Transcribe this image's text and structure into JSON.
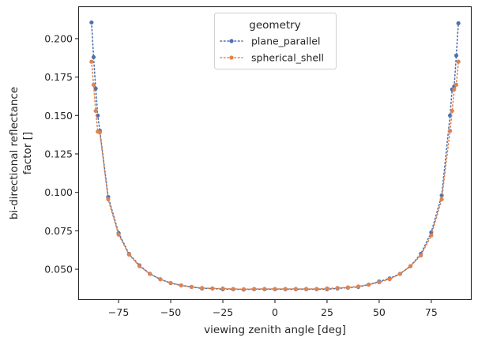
{
  "chart_data": {
    "type": "line",
    "xlabel": "viewing zenith angle [deg]",
    "ylabel_lines": [
      "bi-directional reflectance",
      "factor []"
    ],
    "xlim": [
      -94,
      94
    ],
    "ylim": [
      0.0305,
      0.2205
    ],
    "xticks": [
      -75,
      -50,
      -25,
      0,
      25,
      50,
      75
    ],
    "xtick_labels": [
      "−75",
      "−50",
      "−25",
      "0",
      "25",
      "50",
      "75"
    ],
    "yticks": [
      0.05,
      0.075,
      0.1,
      0.125,
      0.15,
      0.175,
      0.2
    ],
    "ytick_labels": [
      "0.050",
      "0.075",
      "0.100",
      "0.125",
      "0.150",
      "0.175",
      "0.200"
    ],
    "grid": false,
    "legend": {
      "title": "geometry",
      "placement": "upper center"
    },
    "x": [
      -88,
      -87,
      -86,
      -85,
      -84,
      -80,
      -75,
      -70,
      -65,
      -60,
      -55,
      -50,
      -45,
      -40,
      -35,
      -30,
      -25,
      -20,
      -15,
      -10,
      -5,
      0,
      5,
      10,
      15,
      20,
      25,
      30,
      35,
      40,
      45,
      50,
      55,
      60,
      65,
      70,
      75,
      80,
      84,
      85,
      86,
      87,
      88
    ],
    "series": [
      {
        "name": "plane_parallel",
        "color": "#4c72b0",
        "values": [
          0.2105,
          0.188,
          0.1675,
          0.15,
          0.14,
          0.097,
          0.0735,
          0.06,
          0.0525,
          0.047,
          0.0435,
          0.041,
          0.0395,
          0.0385,
          0.0375,
          0.0375,
          0.037,
          0.037,
          0.0368,
          0.037,
          0.037,
          0.037,
          0.037,
          0.037,
          0.037,
          0.037,
          0.037,
          0.0375,
          0.038,
          0.0385,
          0.04,
          0.042,
          0.044,
          0.047,
          0.052,
          0.06,
          0.074,
          0.098,
          0.15,
          0.167,
          0.169,
          0.189,
          0.21
        ]
      },
      {
        "name": "spherical_shell",
        "color": "#dd8452",
        "values": [
          0.185,
          0.17,
          0.153,
          0.1395,
          0.139,
          0.0955,
          0.0725,
          0.0595,
          0.052,
          0.047,
          0.0435,
          0.041,
          0.0395,
          0.0385,
          0.0378,
          0.0375,
          0.0375,
          0.0372,
          0.037,
          0.0372,
          0.0372,
          0.0372,
          0.0372,
          0.0372,
          0.0372,
          0.0372,
          0.0375,
          0.0378,
          0.0382,
          0.0388,
          0.04,
          0.0415,
          0.0435,
          0.047,
          0.052,
          0.059,
          0.072,
          0.0955,
          0.14,
          0.153,
          0.167,
          0.17,
          0.185
        ]
      }
    ]
  }
}
